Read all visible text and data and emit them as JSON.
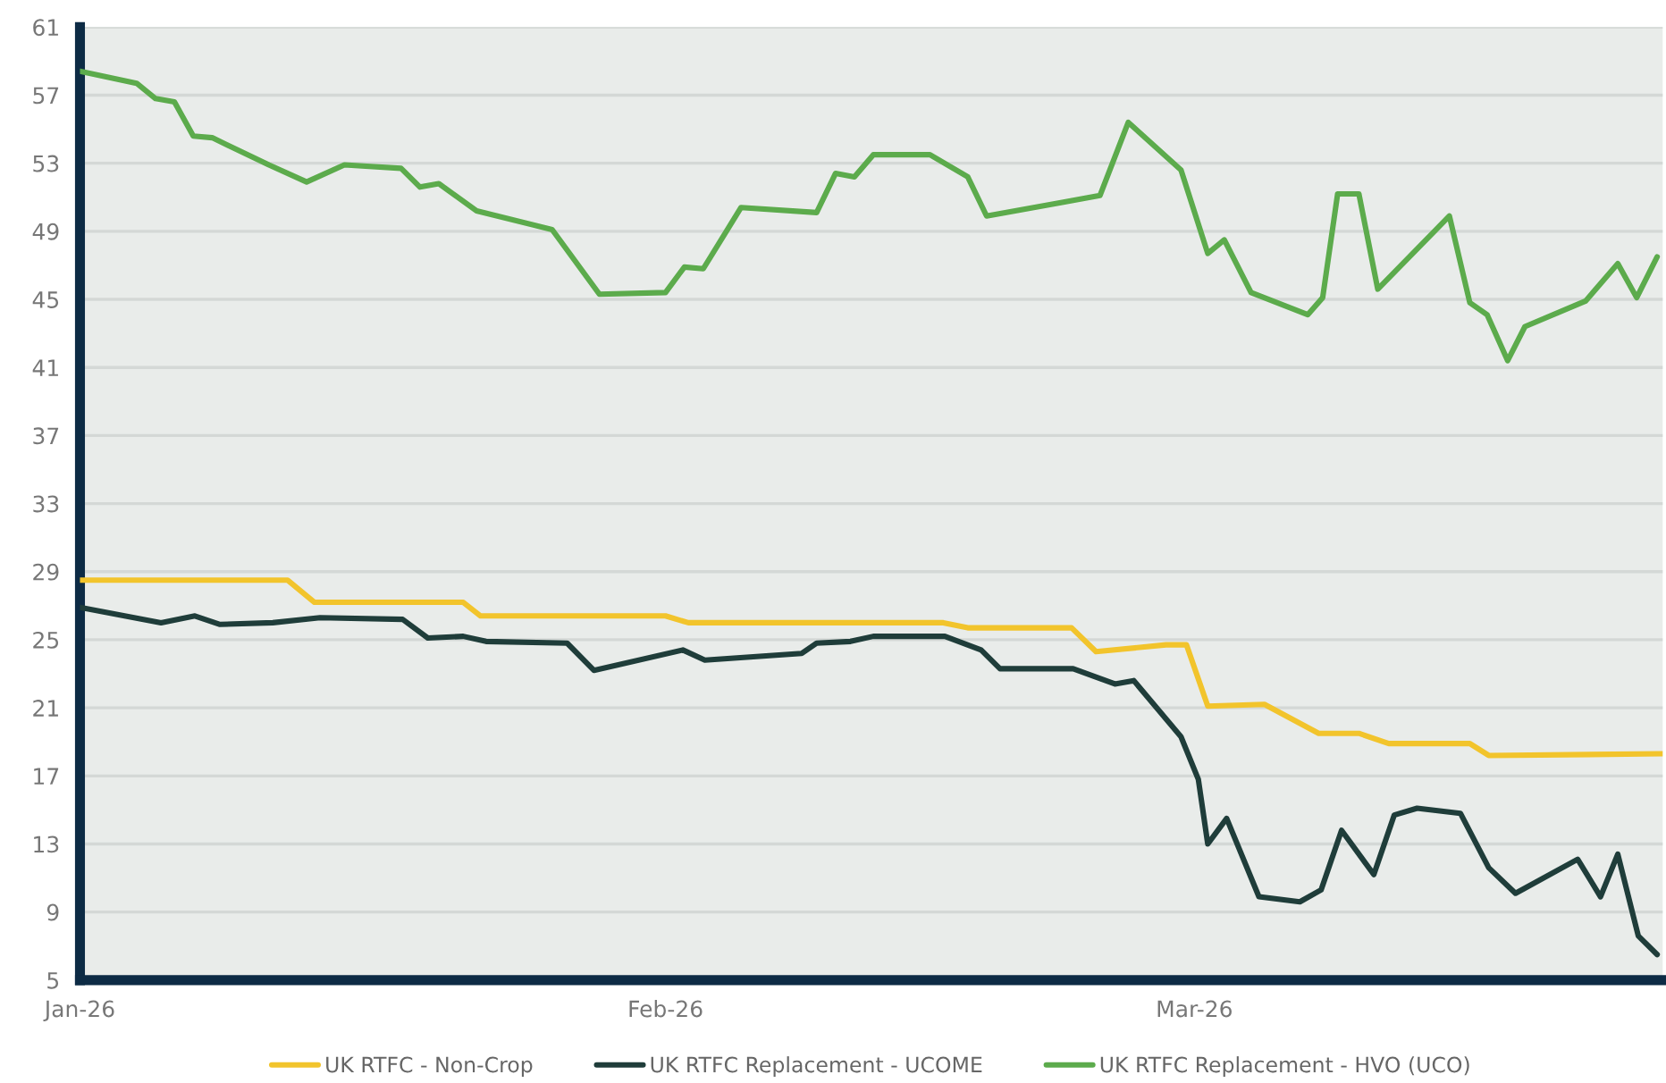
{
  "chart_data": {
    "type": "line",
    "xlim": [
      "2026-01-01",
      "2026-03-25T19:00"
    ],
    "xticks": [
      {
        "value": "2026-01-01",
        "label": "Jan-26"
      },
      {
        "value": "2026-02-01",
        "label": "Feb-26"
      },
      {
        "value": "2026-03-01",
        "label": "Mar-26"
      }
    ],
    "ylim": [
      5,
      61
    ],
    "yticks": [
      5,
      9,
      13,
      17,
      21,
      25,
      29,
      33,
      37,
      41,
      45,
      49,
      53,
      57,
      61
    ],
    "grid": "y",
    "legend": "bottom",
    "marker": "none",
    "line_style": "solid",
    "series": [
      {
        "name": "UK RTFC - Non-Crop",
        "color": "#f2c42c",
        "x": [
          "2026-01-01",
          "2026-01-12",
          "2026-01-13T10:00",
          "2026-01-21T07:00",
          "2026-01-22T05:00",
          "2026-02-01",
          "2026-02-02T05:00",
          "2026-02-15T17:00",
          "2026-02-17",
          "2026-02-22T12:00",
          "2026-02-23T19:00",
          "2026-02-27T12:00",
          "2026-02-28T14:00",
          "2026-03-01T17:00",
          "2026-03-04T17:00",
          "2026-03-07T14:00",
          "2026-03-09T17:00",
          "2026-03-11T07:00",
          "2026-03-15T14:00",
          "2026-03-16T14:00",
          "2026-03-25T19:00"
        ],
        "values": [
          28.5,
          28.5,
          27.2,
          27.2,
          26.4,
          26.4,
          26.0,
          26.0,
          25.7,
          25.7,
          24.3,
          24.7,
          24.7,
          21.1,
          21.2,
          19.5,
          19.5,
          18.9,
          18.9,
          18.2,
          18.3
        ]
      },
      {
        "name": "UK RTFC Replacement - UCOME",
        "color": "#1f3d3a",
        "x": [
          "2026-01-01",
          "2026-01-05T07:00",
          "2026-01-07T02:00",
          "2026-01-08T10:00",
          "2026-01-11T05:00",
          "2026-01-13T17:00",
          "2026-01-18T02:00",
          "2026-01-19T10:00",
          "2026-01-21T07:00",
          "2026-01-22T12:00",
          "2026-01-26T19:00",
          "2026-01-28T05:00",
          "2026-02-01T22:00",
          "2026-02-03T02:00",
          "2026-02-08T05:00",
          "2026-02-09",
          "2026-02-10T19:00",
          "2026-02-12",
          "2026-02-15T19:00",
          "2026-02-17T17:00",
          "2026-02-18T17:00",
          "2026-02-22T14:00",
          "2026-02-24T19:00",
          "2026-02-25T19:00",
          "2026-02-28T07:00",
          "2026-03-01T05:00",
          "2026-03-01T17:00",
          "2026-03-02T17:00",
          "2026-03-04T10:00",
          "2026-03-06T14:00",
          "2026-03-07T17:00",
          "2026-03-08T19:00",
          "2026-03-10T12:00",
          "2026-03-11T14:00",
          "2026-03-12T19:00",
          "2026-03-15T02:00",
          "2026-03-16T14:00",
          "2026-03-18",
          "2026-03-21T07:00",
          "2026-03-22T12:00",
          "2026-03-23T10:00",
          "2026-03-24T12:00",
          "2026-03-25T12:00"
        ],
        "values": [
          26.9,
          26.0,
          26.4,
          25.9,
          26.0,
          26.3,
          26.2,
          25.1,
          25.2,
          24.9,
          24.8,
          23.2,
          24.4,
          23.8,
          24.2,
          24.8,
          24.9,
          25.2,
          25.2,
          24.4,
          23.3,
          23.3,
          22.4,
          22.6,
          19.3,
          16.8,
          13.0,
          14.5,
          9.9,
          9.6,
          10.3,
          13.8,
          11.2,
          14.7,
          15.1,
          14.8,
          11.6,
          10.1,
          12.1,
          9.9,
          12.4,
          7.6,
          6.5
        ]
      },
      {
        "name": "UK RTFC Replacement - HVO (UCO)",
        "color": "#5cab4c",
        "x": [
          "2026-01-01",
          "2026-01-04",
          "2026-01-05",
          "2026-01-06",
          "2026-01-07",
          "2026-01-08",
          "2026-01-11",
          "2026-01-13",
          "2026-01-15",
          "2026-01-18",
          "2026-01-19",
          "2026-01-20",
          "2026-01-22",
          "2026-01-26",
          "2026-01-28T12:00",
          "2026-02-01",
          "2026-02-02",
          "2026-02-03",
          "2026-02-05",
          "2026-02-09",
          "2026-02-10",
          "2026-02-11",
          "2026-02-12",
          "2026-02-15",
          "2026-02-17",
          "2026-02-18",
          "2026-02-22",
          "2026-02-24",
          "2026-02-25T12:00",
          "2026-02-28T07:00",
          "2026-03-01T17:00",
          "2026-03-02T14:00",
          "2026-03-04",
          "2026-03-07",
          "2026-03-07T19:00",
          "2026-03-08T14:00",
          "2026-03-09T17:00",
          "2026-03-10T17:00",
          "2026-03-14T12:00",
          "2026-03-15T14:00",
          "2026-03-16T12:00",
          "2026-03-17T14:00",
          "2026-03-18T12:00",
          "2026-03-21T17:00",
          "2026-03-23T10:00",
          "2026-03-24T10:00",
          "2026-03-25T12:00"
        ],
        "values": [
          58.4,
          57.7,
          56.8,
          56.6,
          54.6,
          54.5,
          52.9,
          51.9,
          52.9,
          52.7,
          51.6,
          51.8,
          50.2,
          49.1,
          45.3,
          45.4,
          46.9,
          46.8,
          50.4,
          50.1,
          52.4,
          52.2,
          53.5,
          53.5,
          52.2,
          49.9,
          50.7,
          51.1,
          55.4,
          52.6,
          47.7,
          48.5,
          45.4,
          44.1,
          45.1,
          51.2,
          51.2,
          45.6,
          49.9,
          44.8,
          44.1,
          41.4,
          43.4,
          44.9,
          47.1,
          45.1,
          47.5
        ]
      }
    ]
  }
}
